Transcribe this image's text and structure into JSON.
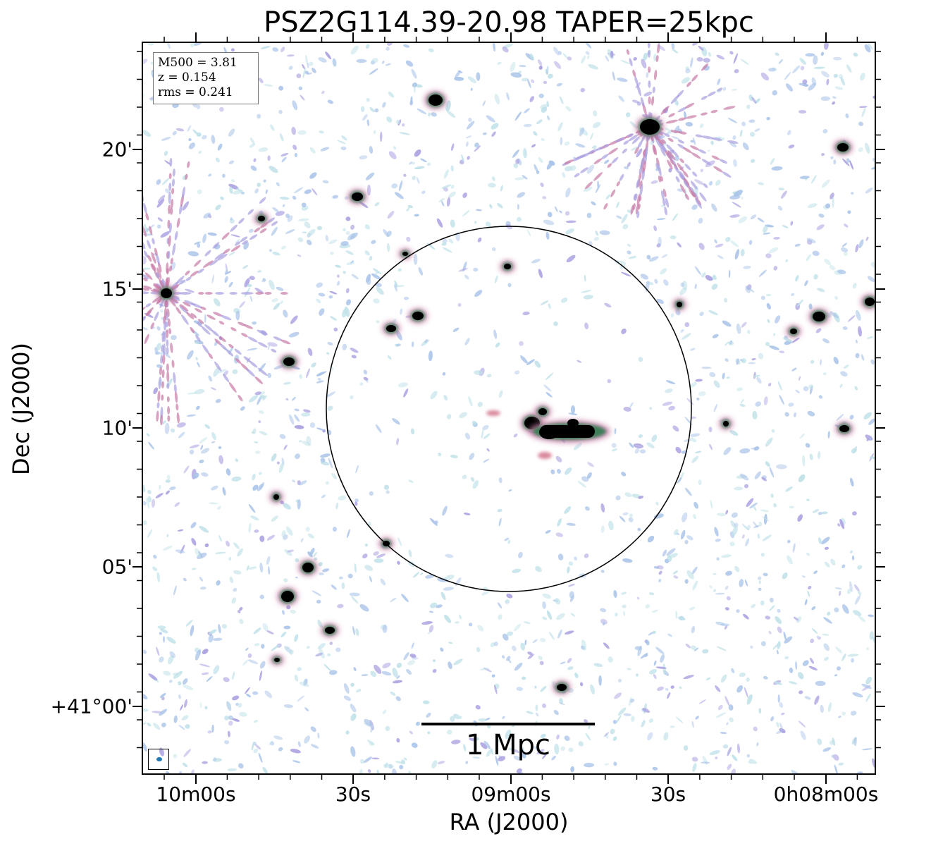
{
  "title": "PSZ2G114.39-20.98 TAPER=25kpc",
  "xlabel": "RA (J2000)",
  "ylabel": "Dec (J2000)",
  "x_ticks": [
    "10m00s",
    "30s",
    "09m00s",
    "30s",
    "0h08m00s"
  ],
  "y_ticks": [
    "20'",
    "15'",
    "10'",
    "05'",
    "+41°00'"
  ],
  "info_box": {
    "line1": "M500 = 3.81",
    "line2": "z = 0.154",
    "line3": "rms = 0.241"
  },
  "scalebar_label": "1 Mpc",
  "colors": {
    "noise_light": "#a9c3e8",
    "noise_cyan": "#bfe1e8",
    "noise_violet": "#a89fe0",
    "emission_pink": "#c77aa6",
    "emission_red": "#c0395a",
    "emission_green": "#2e7d4f",
    "source_core": "#000000"
  }
}
